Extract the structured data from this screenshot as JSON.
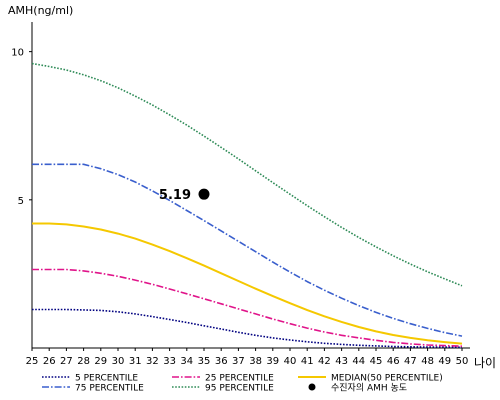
{
  "chart_data": {
    "type": "line",
    "title": "",
    "ylabel": "AMH(ng/ml)",
    "xlabel": "나이",
    "xlim": [
      25,
      50
    ],
    "ylim": [
      0,
      11
    ],
    "grid": false,
    "legend_position": "bottom",
    "y_ticks": [
      5,
      10
    ],
    "x_ticks": [
      25,
      26,
      27,
      28,
      29,
      30,
      31,
      32,
      33,
      34,
      35,
      36,
      37,
      38,
      39,
      40,
      41,
      42,
      43,
      44,
      45,
      46,
      47,
      48,
      49,
      50
    ],
    "series": [
      {
        "name": "5 PERCENTILE",
        "color": "#000080",
        "style": "dotted",
        "x": [
          25,
          27,
          29,
          30,
          31,
          32,
          33,
          34,
          35,
          36,
          37,
          38,
          39,
          40,
          41,
          42,
          43,
          44,
          45,
          46,
          47,
          48,
          49,
          50
        ],
        "y": [
          1.3,
          1.3,
          1.27,
          1.22,
          1.15,
          1.06,
          0.96,
          0.86,
          0.75,
          0.64,
          0.53,
          0.43,
          0.34,
          0.27,
          0.21,
          0.16,
          0.12,
          0.09,
          0.07,
          0.05,
          0.04,
          0.03,
          0.03,
          0.02
        ]
      },
      {
        "name": "25 PERCENTILE",
        "color": "#e0148a",
        "style": "dashdot",
        "x": [
          25,
          27,
          28,
          29,
          30,
          31,
          32,
          33,
          34,
          35,
          36,
          37,
          38,
          39,
          40,
          41,
          42,
          43,
          44,
          45,
          46,
          47,
          48,
          49,
          50
        ],
        "y": [
          2.65,
          2.65,
          2.6,
          2.52,
          2.42,
          2.29,
          2.15,
          1.99,
          1.83,
          1.66,
          1.49,
          1.32,
          1.15,
          0.98,
          0.82,
          0.67,
          0.54,
          0.43,
          0.34,
          0.26,
          0.19,
          0.14,
          0.1,
          0.08,
          0.06
        ]
      },
      {
        "name": "MEDIAN(50 PERCENTILE)",
        "color": "#f5c800",
        "style": "solid",
        "x": [
          25,
          26,
          27,
          28,
          29,
          30,
          31,
          32,
          33,
          34,
          35,
          36,
          37,
          38,
          39,
          40,
          41,
          42,
          43,
          44,
          45,
          46,
          47,
          48,
          49,
          50
        ],
        "y": [
          4.2,
          4.2,
          4.17,
          4.1,
          4.0,
          3.86,
          3.69,
          3.49,
          3.27,
          3.03,
          2.78,
          2.52,
          2.26,
          2.0,
          1.75,
          1.51,
          1.28,
          1.07,
          0.88,
          0.71,
          0.56,
          0.44,
          0.34,
          0.26,
          0.2,
          0.15
        ]
      },
      {
        "name": "75 PERCENTILE",
        "color": "#3a5fcd",
        "style": "dashdot",
        "x": [
          25,
          26,
          27,
          28,
          29,
          30,
          31,
          32,
          33,
          34,
          35,
          36,
          37,
          38,
          39,
          40,
          41,
          42,
          43,
          44,
          45,
          46,
          47,
          48,
          49,
          50
        ],
        "y": [
          6.2,
          6.2,
          6.2,
          6.2,
          6.05,
          5.85,
          5.6,
          5.3,
          4.98,
          4.64,
          4.3,
          3.95,
          3.6,
          3.25,
          2.9,
          2.56,
          2.24,
          1.95,
          1.68,
          1.43,
          1.2,
          1.0,
          0.82,
          0.66,
          0.52,
          0.4
        ]
      },
      {
        "name": "95 PERCENTILE",
        "color": "#2e8b57",
        "style": "dotted",
        "x": [
          25,
          26,
          27,
          28,
          29,
          30,
          31,
          32,
          33,
          34,
          35,
          36,
          37,
          38,
          39,
          40,
          41,
          42,
          43,
          44,
          45,
          46,
          47,
          48,
          49,
          50
        ],
        "y": [
          9.6,
          9.5,
          9.38,
          9.22,
          9.02,
          8.78,
          8.5,
          8.2,
          7.87,
          7.52,
          7.15,
          6.77,
          6.38,
          5.98,
          5.58,
          5.19,
          4.8,
          4.43,
          4.07,
          3.73,
          3.41,
          3.11,
          2.83,
          2.57,
          2.33,
          2.1
        ]
      }
    ],
    "marker": {
      "name": "수진자의 AMH 농도",
      "x": 35,
      "y": 5.19,
      "label": "5.19",
      "color": "#000000"
    }
  }
}
